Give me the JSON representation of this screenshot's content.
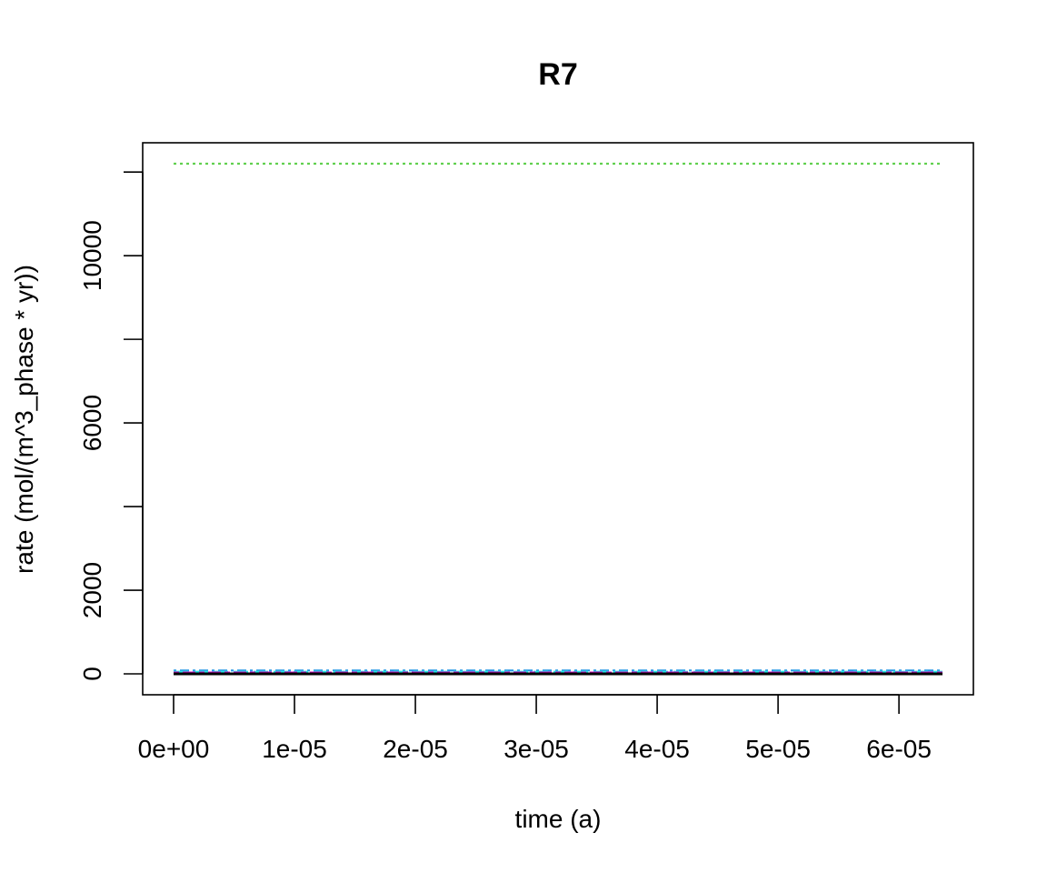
{
  "chart_data": {
    "type": "line",
    "title": "R7",
    "xlabel": "time (a)",
    "ylabel": "rate (mol/(m^3_phase * yr))",
    "xlim": [
      0,
      6.36e-05
    ],
    "ylim": [
      0,
      12200
    ],
    "x_ticks": [
      0,
      1e-05,
      2e-05,
      3e-05,
      4e-05,
      5e-05,
      6e-05
    ],
    "x_tick_labels": [
      "0e+00",
      "1e-05",
      "2e-05",
      "3e-05",
      "4e-05",
      "5e-05",
      "6e-05"
    ],
    "y_ticks": [
      0,
      2000,
      4000,
      6000,
      8000,
      10000,
      12000
    ],
    "y_tick_labels": [
      "0",
      "2000",
      "",
      "6000",
      "",
      "10000",
      ""
    ],
    "grid": false,
    "legend": "none",
    "series": [
      {
        "x": [
          0,
          6.36e-05
        ],
        "values": [
          12200,
          12200
        ],
        "color": "#61d04f",
        "dash": "dotted"
      },
      {
        "x": [
          0,
          6.36e-05
        ],
        "values": [
          80,
          80
        ],
        "color": "#2297e6",
        "dash": "dashdot"
      },
      {
        "x": [
          0,
          6.36e-05
        ],
        "values": [
          50,
          50
        ],
        "color": "#28e2e5",
        "dash": "longdash"
      },
      {
        "x": [
          0,
          6.36e-05
        ],
        "values": [
          30,
          30
        ],
        "color": "#cd0bbc",
        "dash": "twodash"
      },
      {
        "x": [
          0,
          6.36e-05
        ],
        "values": [
          10,
          10
        ],
        "color": "#df536b",
        "dash": "dashed"
      },
      {
        "x": [
          0,
          6.36e-05
        ],
        "values": [
          0,
          0
        ],
        "color": "#000000",
        "dash": "solid"
      }
    ]
  }
}
